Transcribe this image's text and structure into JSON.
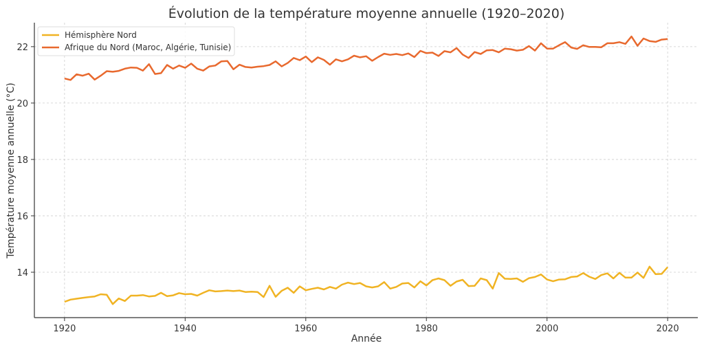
{
  "chart_data": {
    "type": "line",
    "title": "Évolution de la température moyenne annuelle (1920–2020)",
    "xlabel": "Année",
    "ylabel": "Température moyenne annuelle (°C)",
    "xlim": [
      1915,
      2025
    ],
    "ylim": [
      12.39,
      22.85
    ],
    "xticks": [
      1920,
      1940,
      1960,
      1980,
      2000,
      2020
    ],
    "yticks": [
      14,
      16,
      18,
      20,
      22
    ],
    "grid": true,
    "legend_position": "top-left",
    "x_start": 1920,
    "series": [
      {
        "name": "Hémisphère Nord",
        "color": "#F0B323",
        "values": [
          12.95,
          13.03,
          13.06,
          13.09,
          13.12,
          13.14,
          13.22,
          13.2,
          12.87,
          13.07,
          12.98,
          13.17,
          13.17,
          13.19,
          13.14,
          13.16,
          13.27,
          13.15,
          13.18,
          13.26,
          13.22,
          13.23,
          13.17,
          13.27,
          13.36,
          13.32,
          13.33,
          13.35,
          13.33,
          13.35,
          13.3,
          13.31,
          13.3,
          13.12,
          13.52,
          13.13,
          13.34,
          13.45,
          13.27,
          13.5,
          13.36,
          13.41,
          13.45,
          13.39,
          13.48,
          13.42,
          13.56,
          13.63,
          13.58,
          13.62,
          13.5,
          13.46,
          13.5,
          13.65,
          13.42,
          13.48,
          13.6,
          13.62,
          13.46,
          13.68,
          13.53,
          13.72,
          13.78,
          13.72,
          13.52,
          13.67,
          13.73,
          13.51,
          13.52,
          13.78,
          13.72,
          13.42,
          13.97,
          13.77,
          13.76,
          13.78,
          13.66,
          13.79,
          13.83,
          13.92,
          13.74,
          13.68,
          13.74,
          13.75,
          13.83,
          13.85,
          13.97,
          13.84,
          13.76,
          13.9,
          13.96,
          13.78,
          13.98,
          13.81,
          13.81,
          13.99,
          13.8,
          14.2,
          13.93,
          13.94,
          14.18
        ]
      },
      {
        "name": "Afrique du Nord (Maroc, Algérie, Tunisie)",
        "color": "#E8692E",
        "values": [
          20.87,
          20.82,
          21.02,
          20.97,
          21.04,
          20.83,
          20.97,
          21.13,
          21.11,
          21.14,
          21.22,
          21.26,
          21.25,
          21.15,
          21.38,
          21.03,
          21.06,
          21.35,
          21.22,
          21.33,
          21.25,
          21.4,
          21.22,
          21.15,
          21.3,
          21.33,
          21.48,
          21.49,
          21.2,
          21.36,
          21.28,
          21.26,
          21.29,
          21.31,
          21.35,
          21.48,
          21.3,
          21.42,
          21.6,
          21.52,
          21.65,
          21.45,
          21.62,
          21.53,
          21.36,
          21.55,
          21.48,
          21.55,
          21.68,
          21.62,
          21.66,
          21.5,
          21.63,
          21.75,
          21.71,
          21.74,
          21.7,
          21.76,
          21.63,
          21.85,
          21.77,
          21.79,
          21.67,
          21.84,
          21.8,
          21.95,
          21.72,
          21.6,
          21.81,
          21.74,
          21.87,
          21.88,
          21.8,
          21.93,
          21.91,
          21.86,
          21.89,
          22.02,
          21.86,
          22.12,
          21.93,
          21.93,
          22.05,
          22.16,
          21.97,
          21.92,
          22.05,
          21.99,
          21.99,
          21.98,
          22.12,
          22.12,
          22.16,
          22.1,
          22.36,
          22.03,
          22.29,
          22.2,
          22.17,
          22.25,
          22.27
        ]
      }
    ]
  }
}
